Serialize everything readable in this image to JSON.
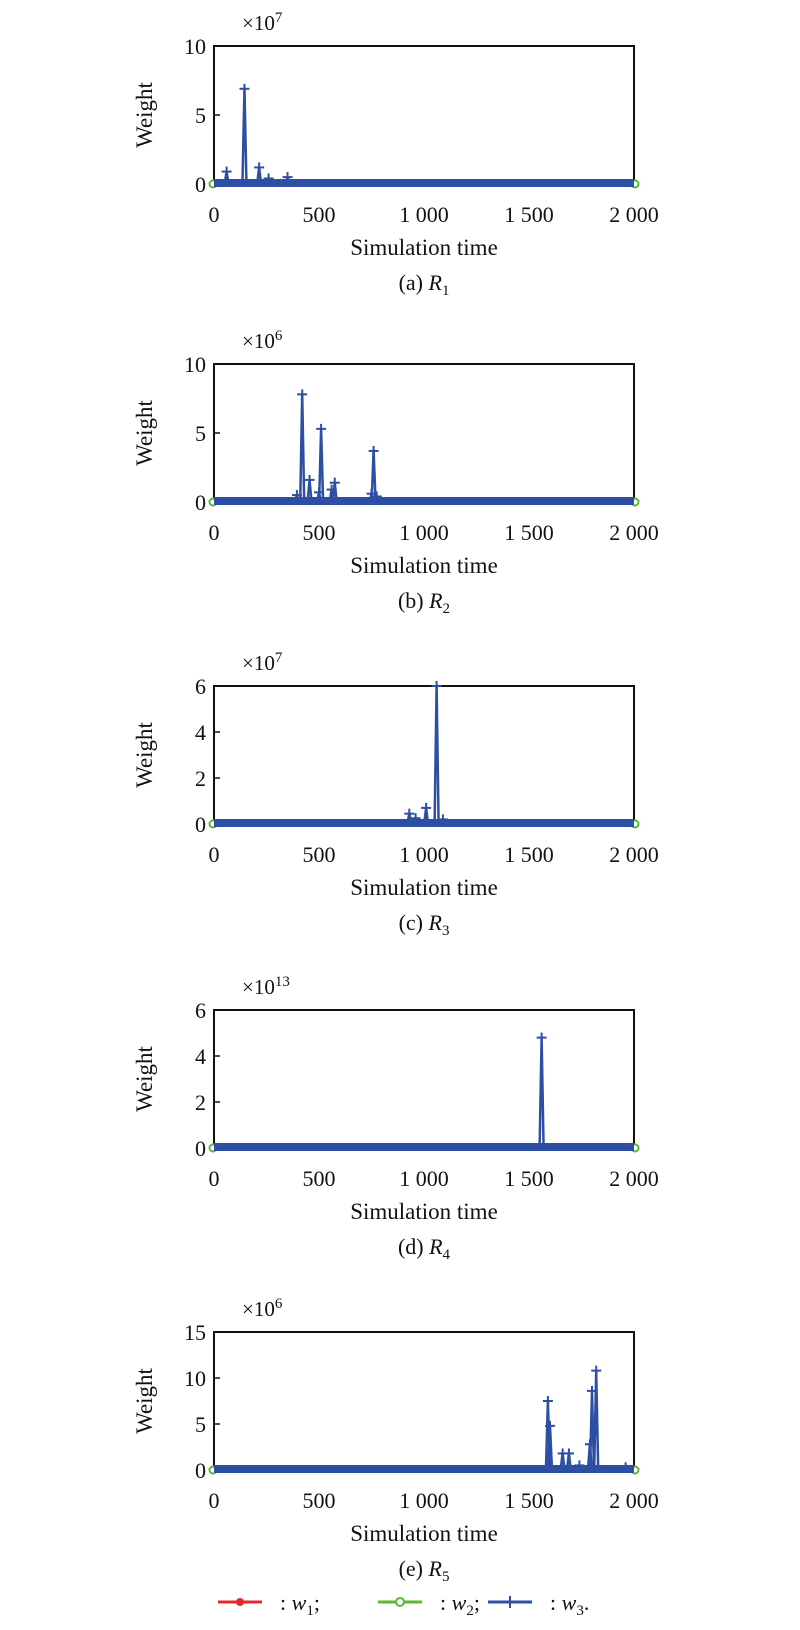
{
  "figure": {
    "legend": [
      {
        "label": "w",
        "sub": "1",
        "suffix": ";",
        "color": "#e8262b",
        "marker": "dot"
      },
      {
        "label": "w",
        "sub": "2",
        "suffix": ";",
        "color": "#5cb832",
        "marker": "circle"
      },
      {
        "label": "w",
        "sub": "3",
        "suffix": ".",
        "color": "#2d4fa3",
        "marker": "plus"
      }
    ],
    "legend_separator": ":"
  },
  "chart_data": [
    {
      "type": "line",
      "caption_prefix": "(a)",
      "caption_var": "R",
      "caption_sub": "1",
      "multiplier_base": "×10",
      "multiplier_exp": "7",
      "xlabel": "Simulation time",
      "ylabel": "Weight",
      "xlim": [
        0,
        2000
      ],
      "ylim": [
        0,
        10
      ],
      "xticks": [
        0,
        500,
        1000,
        1500,
        2000
      ],
      "xtick_labels": [
        "0",
        "500",
        "1 000",
        "1 500",
        "2 000"
      ],
      "yticks": [
        0,
        5,
        10
      ],
      "ytick_labels": [
        "0",
        "5",
        "10"
      ],
      "series": [
        {
          "name": "w1",
          "points": [
            [
              0,
              0
            ],
            [
              2000,
              0
            ]
          ]
        },
        {
          "name": "w2",
          "points": [
            [
              0,
              0
            ],
            [
              2000,
              0
            ]
          ]
        },
        {
          "name": "w3",
          "spikes": [
            [
              60,
              0.9
            ],
            [
              145,
              6.9
            ],
            [
              215,
              1.2
            ],
            [
              260,
              0.4
            ],
            [
              350,
              0.5
            ]
          ]
        }
      ]
    },
    {
      "type": "line",
      "caption_prefix": "(b)",
      "caption_var": "R",
      "caption_sub": "2",
      "multiplier_base": "×10",
      "multiplier_exp": "6",
      "xlabel": "Simulation time",
      "ylabel": "Weight",
      "xlim": [
        0,
        2000
      ],
      "ylim": [
        0,
        10
      ],
      "xticks": [
        0,
        500,
        1000,
        1500,
        2000
      ],
      "xtick_labels": [
        "0",
        "500",
        "1 000",
        "1 500",
        "2 000"
      ],
      "yticks": [
        0,
        5,
        10
      ],
      "ytick_labels": [
        "0",
        "5",
        "10"
      ],
      "series": [
        {
          "name": "w1",
          "points": [
            [
              0,
              0
            ],
            [
              2000,
              0
            ]
          ]
        },
        {
          "name": "w2",
          "points": [
            [
              0,
              0
            ],
            [
              2000,
              0
            ]
          ]
        },
        {
          "name": "w3",
          "spikes": [
            [
              395,
              0.5
            ],
            [
              420,
              7.8
            ],
            [
              455,
              1.6
            ],
            [
              500,
              0.7
            ],
            [
              510,
              5.3
            ],
            [
              560,
              0.9
            ],
            [
              575,
              1.4
            ],
            [
              750,
              0.6
            ],
            [
              760,
              3.7
            ],
            [
              775,
              0.4
            ]
          ]
        }
      ]
    },
    {
      "type": "line",
      "caption_prefix": "(c)",
      "caption_var": "R",
      "caption_sub": "3",
      "multiplier_base": "×10",
      "multiplier_exp": "7",
      "xlabel": "Simulation time",
      "ylabel": "Weight",
      "xlim": [
        0,
        2000
      ],
      "ylim": [
        0,
        6
      ],
      "xticks": [
        0,
        500,
        1000,
        1500,
        2000
      ],
      "xtick_labels": [
        "0",
        "500",
        "1 000",
        "1 500",
        "2 000"
      ],
      "yticks": [
        0,
        2,
        4,
        6
      ],
      "ytick_labels": [
        "0",
        "2",
        "4",
        "6"
      ],
      "series": [
        {
          "name": "w1",
          "points": [
            [
              0,
              0
            ],
            [
              2000,
              0
            ]
          ]
        },
        {
          "name": "w2",
          "points": [
            [
              0,
              0
            ],
            [
              2000,
              0
            ]
          ]
        },
        {
          "name": "w3",
          "spikes": [
            [
              930,
              0.45
            ],
            [
              960,
              0.25
            ],
            [
              1010,
              0.7
            ],
            [
              1060,
              6.0
            ],
            [
              1090,
              0.2
            ]
          ]
        }
      ]
    },
    {
      "type": "line",
      "caption_prefix": "(d)",
      "caption_var": "R",
      "caption_sub": "4",
      "multiplier_base": "×10",
      "multiplier_exp": "13",
      "xlabel": "Simulation time",
      "ylabel": "Weight",
      "xlim": [
        0,
        2000
      ],
      "ylim": [
        0,
        6
      ],
      "xticks": [
        0,
        500,
        1000,
        1500,
        2000
      ],
      "xtick_labels": [
        "0",
        "500",
        "1 000",
        "1 500",
        "2 000"
      ],
      "yticks": [
        0,
        2,
        4,
        6
      ],
      "ytick_labels": [
        "0",
        "2",
        "4",
        "6"
      ],
      "series": [
        {
          "name": "w1",
          "points": [
            [
              0,
              0
            ],
            [
              2000,
              0
            ]
          ]
        },
        {
          "name": "w2",
          "points": [
            [
              0,
              0
            ],
            [
              2000,
              0
            ]
          ]
        },
        {
          "name": "w3",
          "spikes": [
            [
              1560,
              4.8
            ]
          ]
        }
      ]
    },
    {
      "type": "line",
      "caption_prefix": "(e)",
      "caption_var": "R",
      "caption_sub": "5",
      "multiplier_base": "×10",
      "multiplier_exp": "6",
      "xlabel": "Simulation time",
      "ylabel": "Weight",
      "xlim": [
        0,
        2000
      ],
      "ylim": [
        0,
        15
      ],
      "xticks": [
        0,
        500,
        1000,
        1500,
        2000
      ],
      "xtick_labels": [
        "0",
        "500",
        "1 000",
        "1 500",
        "2 000"
      ],
      "yticks": [
        0,
        5,
        10,
        15
      ],
      "ytick_labels": [
        "0",
        "5",
        "10",
        "15"
      ],
      "series": [
        {
          "name": "w1",
          "points": [
            [
              0,
              0
            ],
            [
              2000,
              0
            ]
          ]
        },
        {
          "name": "w2",
          "points": [
            [
              0,
              0
            ],
            [
              2000,
              0
            ]
          ]
        },
        {
          "name": "w3",
          "spikes": [
            [
              1590,
              7.5
            ],
            [
              1600,
              4.8
            ],
            [
              1660,
              1.8
            ],
            [
              1690,
              1.8
            ],
            [
              1740,
              0.5
            ],
            [
              1790,
              2.8
            ],
            [
              1800,
              8.6
            ],
            [
              1820,
              10.8
            ],
            [
              1960,
              0.3
            ]
          ]
        }
      ]
    }
  ]
}
